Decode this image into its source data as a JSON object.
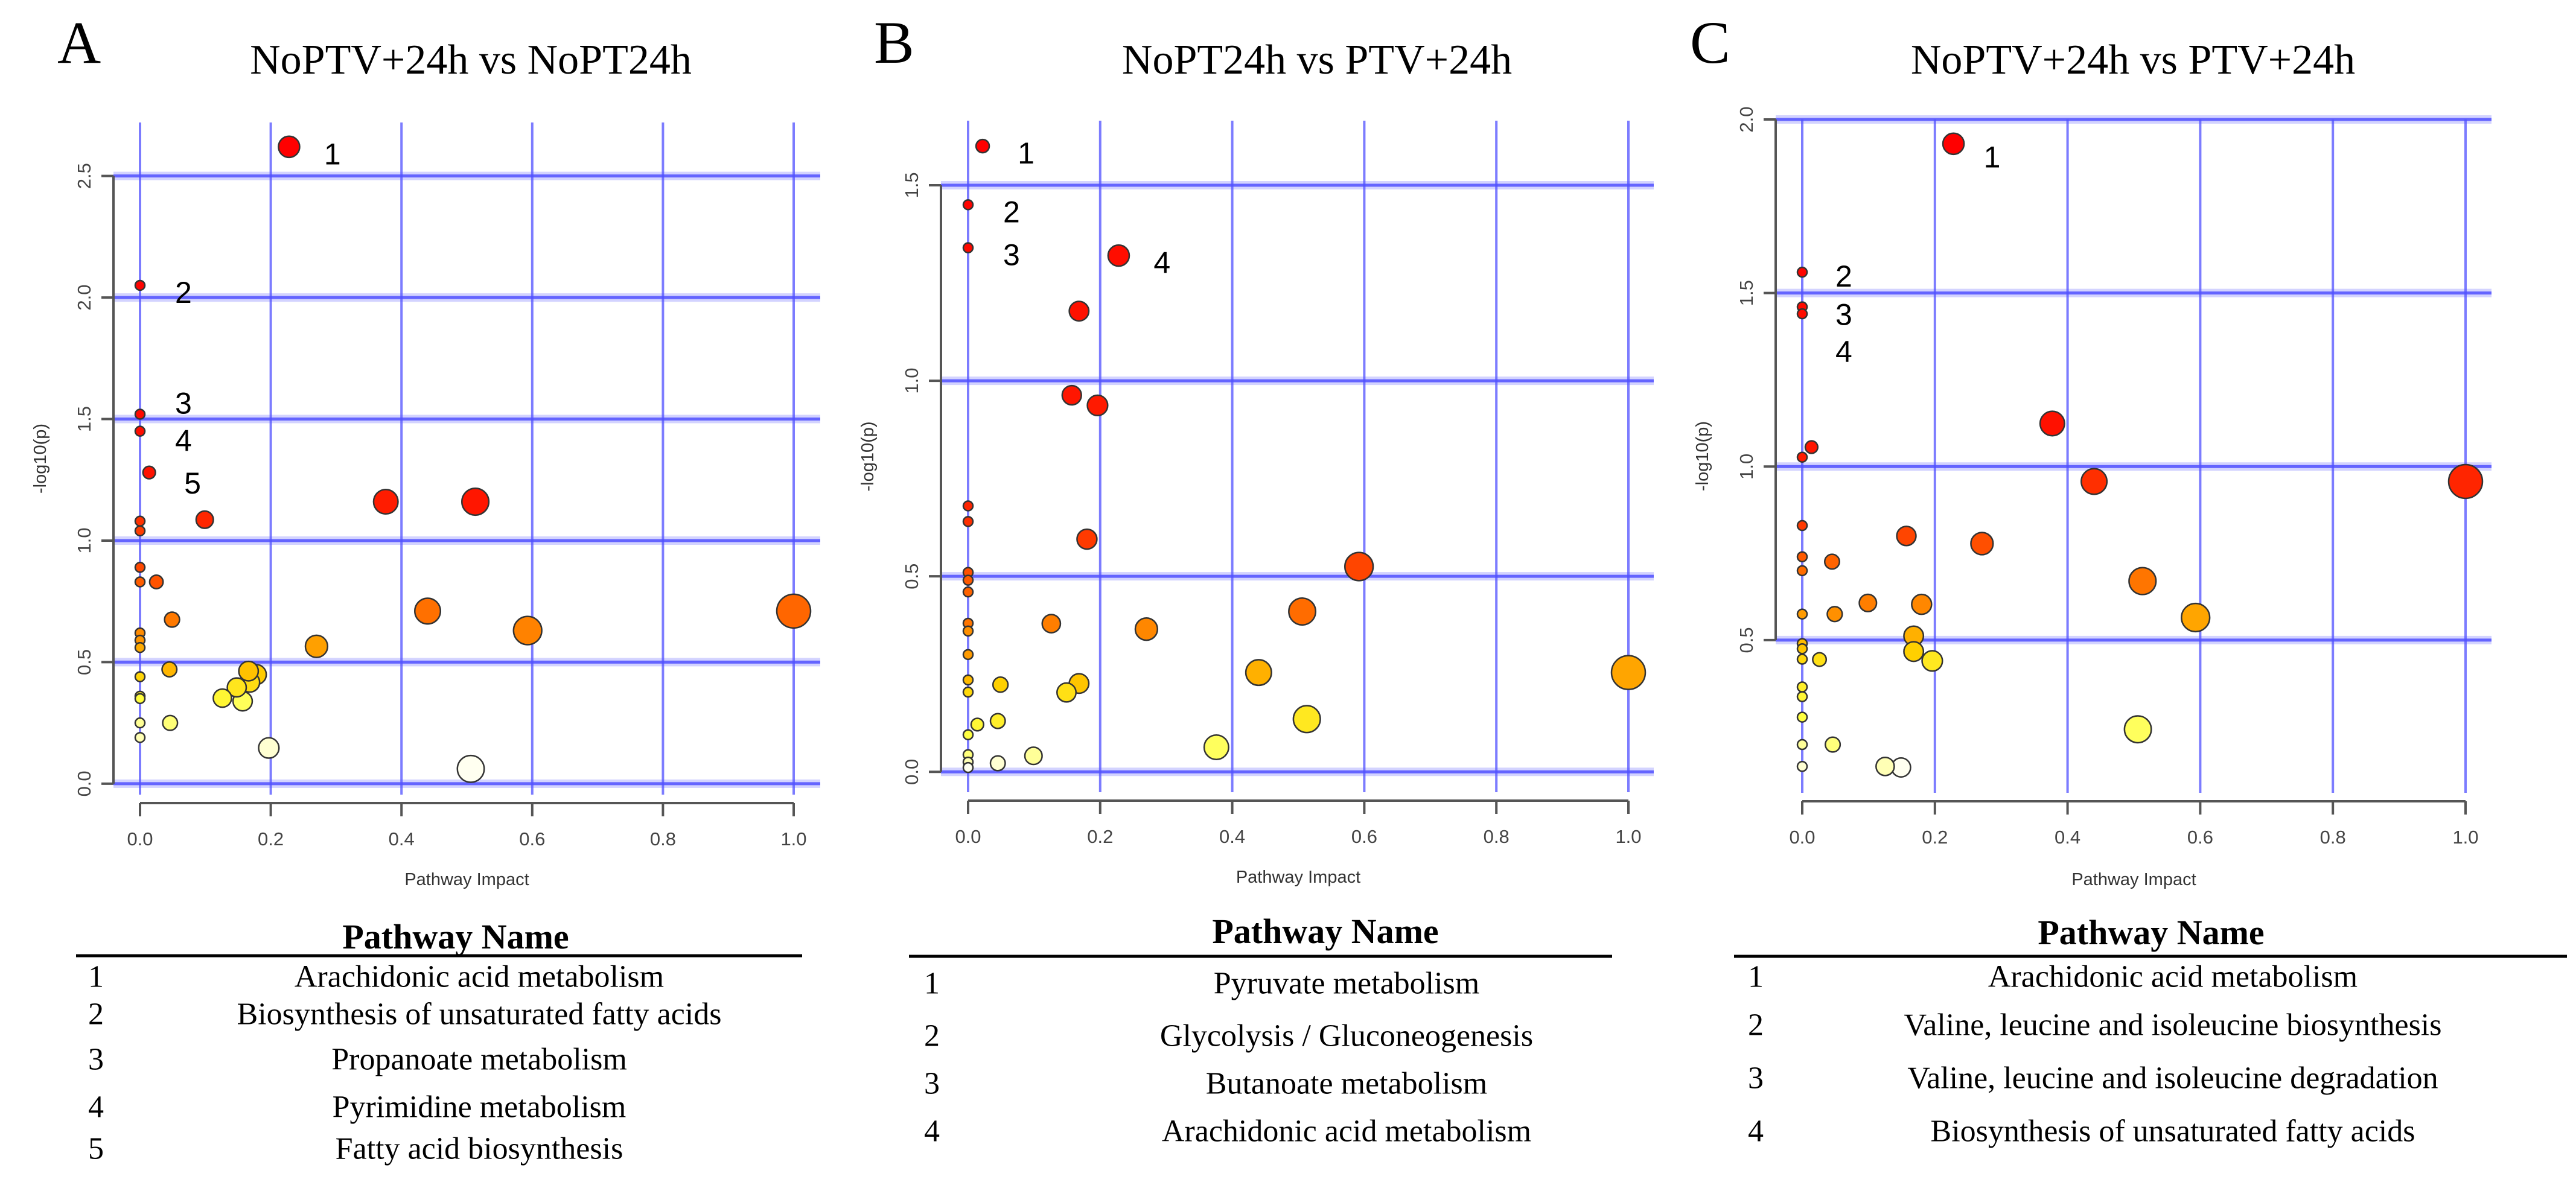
{
  "panels": [
    {
      "letter": "A",
      "table": {
        "header": "Pathway Name",
        "rows": [
          {
            "num": "1",
            "name": "Arachidonic acid metabolism"
          },
          {
            "num": "2",
            "name": "Biosynthesis of unsaturated fatty acids"
          },
          {
            "num": "3",
            "name": "Propanoate metabolism"
          },
          {
            "num": "4",
            "name": "Pyrimidine metabolism"
          },
          {
            "num": "5",
            "name": "Fatty acid biosynthesis"
          }
        ]
      }
    },
    {
      "letter": "B",
      "table": {
        "header": "Pathway Name",
        "rows": [
          {
            "num": "1",
            "name": "Pyruvate metabolism"
          },
          {
            "num": "2",
            "name": "Glycolysis / Gluconeogenesis"
          },
          {
            "num": "3",
            "name": "Butanoate metabolism"
          },
          {
            "num": "4",
            "name": "Arachidonic acid metabolism"
          }
        ]
      }
    },
    {
      "letter": "C",
      "table": {
        "header": "Pathway Name",
        "rows": [
          {
            "num": "1",
            "name": "Arachidonic acid metabolism"
          },
          {
            "num": "2",
            "name": "Valine, leucine and isoleucine biosynthesis"
          },
          {
            "num": "3",
            "name": "Valine, leucine and isoleucine degradation"
          },
          {
            "num": "4",
            "name": "Biosynthesis of unsaturated fatty acids"
          }
        ]
      }
    }
  ],
  "colors": {
    "grid": "#5050ff",
    "axis": "#555555",
    "point_stroke": "#333333",
    "heat": [
      "#fffff0",
      "#ffff40",
      "#ffd000",
      "#ff9000",
      "#ff5a00",
      "#ff1a00",
      "#ff0000"
    ]
  },
  "chart_data": [
    {
      "type": "scatter",
      "title": "NoPTV+24h vs NoPT24h",
      "xlabel": "Pathway Impact",
      "ylabel": "-log10(p)",
      "xlim": [
        0,
        1
      ],
      "ylim": [
        -0.045,
        2.72
      ],
      "grid": true,
      "x_ticks": [
        "0.0",
        "0.2",
        "0.4",
        "0.6",
        "0.8",
        "1.0"
      ],
      "y_ticks": [
        "0.0",
        "0.5",
        "1.0",
        "1.5",
        "2.0",
        "2.5"
      ],
      "points": [
        [
          0.228,
          2.62,
          "1"
        ],
        [
          0,
          2.05,
          "2"
        ],
        [
          0,
          1.52,
          "3"
        ],
        [
          0,
          1.45,
          "4"
        ],
        [
          0.014,
          1.28,
          "5"
        ],
        [
          0.376,
          1.16
        ],
        [
          0.513,
          1.16
        ],
        [
          0.099,
          1.086
        ],
        [
          0,
          1.08
        ],
        [
          0,
          1.04
        ],
        [
          0,
          0.89
        ],
        [
          0,
          0.83
        ],
        [
          0.025,
          0.83
        ],
        [
          0.44,
          0.71
        ],
        [
          0.049,
          0.675
        ],
        [
          0.593,
          0.63
        ],
        [
          1.0,
          0.71
        ],
        [
          0,
          0.62
        ],
        [
          0,
          0.59
        ],
        [
          0,
          0.56
        ],
        [
          0.27,
          0.565
        ],
        [
          0.045,
          0.47
        ],
        [
          0,
          0.44
        ],
        [
          0.166,
          0.463
        ],
        [
          0.178,
          0.449
        ],
        [
          0.168,
          0.417
        ],
        [
          0.148,
          0.396
        ],
        [
          0.126,
          0.352
        ],
        [
          0.157,
          0.339
        ],
        [
          0,
          0.36
        ],
        [
          0,
          0.35
        ],
        [
          0,
          0.25
        ],
        [
          0.046,
          0.25
        ],
        [
          0,
          0.19
        ],
        [
          0.197,
          0.147
        ],
        [
          0.506,
          0.061
        ]
      ]
    },
    {
      "type": "scatter",
      "title": "NoPT24h vs PTV+24h",
      "xlabel": "Pathway Impact",
      "ylabel": "-log10(p)",
      "xlim": [
        0,
        1
      ],
      "ylim": [
        -0.052,
        1.665
      ],
      "grid": true,
      "x_ticks": [
        "0.0",
        "0.2",
        "0.4",
        "0.6",
        "0.8",
        "1.0"
      ],
      "y_ticks": [
        "0.0",
        "0.5",
        "1.0",
        "1.5"
      ],
      "points": [
        [
          0.022,
          1.6,
          "1"
        ],
        [
          0,
          1.45,
          "2"
        ],
        [
          0,
          1.34,
          "3"
        ],
        [
          0.228,
          1.32,
          "4"
        ],
        [
          0.168,
          1.178
        ],
        [
          0.157,
          0.963
        ],
        [
          0.196,
          0.937
        ],
        [
          0,
          0.68
        ],
        [
          0,
          0.64
        ],
        [
          0.18,
          0.595
        ],
        [
          0.592,
          0.525
        ],
        [
          0,
          0.51
        ],
        [
          0,
          0.49
        ],
        [
          0,
          0.46
        ],
        [
          0.506,
          0.41
        ],
        [
          0.126,
          0.379
        ],
        [
          0.27,
          0.365
        ],
        [
          0,
          0.38
        ],
        [
          0,
          0.36
        ],
        [
          0,
          0.3
        ],
        [
          0.44,
          0.254
        ],
        [
          1.0,
          0.254
        ],
        [
          0,
          0.235
        ],
        [
          0,
          0.204
        ],
        [
          0.049,
          0.223
        ],
        [
          0.168,
          0.226
        ],
        [
          0.149,
          0.203
        ],
        [
          0.513,
          0.135
        ],
        [
          0.014,
          0.121
        ],
        [
          0.045,
          0.13
        ],
        [
          0,
          0.095
        ],
        [
          0.376,
          0.063
        ],
        [
          0.099,
          0.041
        ],
        [
          0.045,
          0.022
        ],
        [
          0,
          0.044
        ],
        [
          0,
          0.025
        ],
        [
          0,
          0.011
        ]
      ]
    },
    {
      "type": "scatter",
      "title": "NoPTV+24h vs PTV+24h",
      "xlabel": "Pathway Impact",
      "ylabel": "-log10(p)",
      "xlim": [
        0,
        1
      ],
      "ylim": [
        0.06,
        2.0
      ],
      "grid": true,
      "x_ticks": [
        "0.0",
        "0.2",
        "0.4",
        "0.6",
        "0.8",
        "1.0"
      ],
      "y_ticks": [
        "0.5",
        "1.0",
        "1.5",
        "2.0"
      ],
      "points": [
        [
          0.228,
          1.93,
          "1"
        ],
        [
          0,
          1.56,
          "2"
        ],
        [
          0,
          1.46,
          "3"
        ],
        [
          0,
          1.44,
          "4"
        ],
        [
          0.377,
          1.124
        ],
        [
          0.014,
          1.056
        ],
        [
          0,
          1.027
        ],
        [
          0.44,
          0.957
        ],
        [
          1.0,
          0.957
        ],
        [
          0,
          0.83
        ],
        [
          0.157,
          0.8
        ],
        [
          0.271,
          0.778
        ],
        [
          0,
          0.74
        ],
        [
          0,
          0.7
        ],
        [
          0.045,
          0.726
        ],
        [
          0.513,
          0.67
        ],
        [
          0.099,
          0.607
        ],
        [
          0.18,
          0.603
        ],
        [
          0,
          0.575
        ],
        [
          0.049,
          0.575
        ],
        [
          0.593,
          0.565
        ],
        [
          0.168,
          0.512
        ],
        [
          0,
          0.49
        ],
        [
          0,
          0.475
        ],
        [
          0,
          0.445
        ],
        [
          0.168,
          0.467
        ],
        [
          0.026,
          0.444
        ],
        [
          0.196,
          0.44
        ],
        [
          0,
          0.365
        ],
        [
          0,
          0.337
        ],
        [
          0,
          0.278
        ],
        [
          0.506,
          0.243
        ],
        [
          0,
          0.199
        ],
        [
          0.046,
          0.199
        ],
        [
          0,
          0.136
        ],
        [
          0.125,
          0.136
        ],
        [
          0.149,
          0.133
        ]
      ]
    }
  ]
}
